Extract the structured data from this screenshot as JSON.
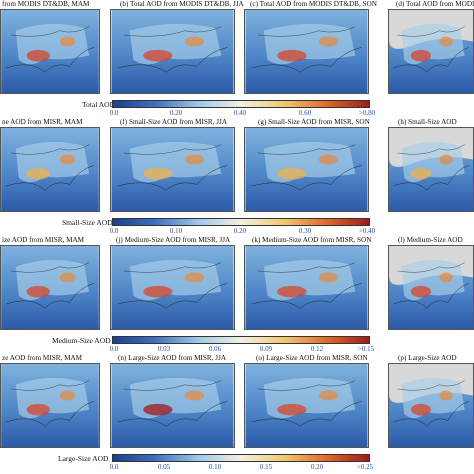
{
  "rows": [
    {
      "titles": [
        "from MODIS DT&DB, MAM",
        "(b) Total AOD from MODIS DT&DB, JJA",
        "(c) Total AOD from MODIS DT&DB, SON",
        "(d) Total AOD from MODIS"
      ],
      "colorbar": {
        "label": "Total AOD",
        "ticks": [
          "0.0",
          "0.20",
          "0.40",
          "0.60",
          ">0.80"
        ]
      }
    },
    {
      "titles": [
        "ne AOD from MISR, MAM",
        "(f) Small-Size AOD from MISR, JJA",
        "(g) Small-Size AOD from MISR, SON",
        "(h) Small-Size AOD"
      ],
      "colorbar": {
        "label": "Small-Size AOD",
        "ticks": [
          "0.0",
          "0.10",
          "0.20",
          "0.30",
          ">0.40"
        ]
      }
    },
    {
      "titles": [
        "ize AOD from MISR, MAM",
        "(j) Medium-Size AOD from MISR, JJA",
        "(k) Medium-Size AOD from MISR, SON",
        "(l) Medium-Size AOD"
      ],
      "colorbar": {
        "label": "Medium-Size AOD",
        "ticks": [
          "0.0",
          "0.03",
          "0.06",
          "0.09",
          "0.12",
          ">0.15"
        ]
      }
    },
    {
      "titles": [
        "ze AOD from MISR, MAM",
        "(n) Large-Size AOD from MISR, JJA",
        "(o) Large-Size AOD from MISR, SON",
        "(p) Large-Size AOD"
      ],
      "colorbar": {
        "label": "Large-Size AOD",
        "ticks": [
          "0.0",
          "0.05",
          "0.10",
          "0.15",
          "0.20",
          ">0.25"
        ]
      }
    }
  ],
  "colors": {
    "low": "#1f3f8f",
    "mid": "#9fc8e6",
    "high": "#a11a1a",
    "land_missing": "#d8d8d8"
  }
}
